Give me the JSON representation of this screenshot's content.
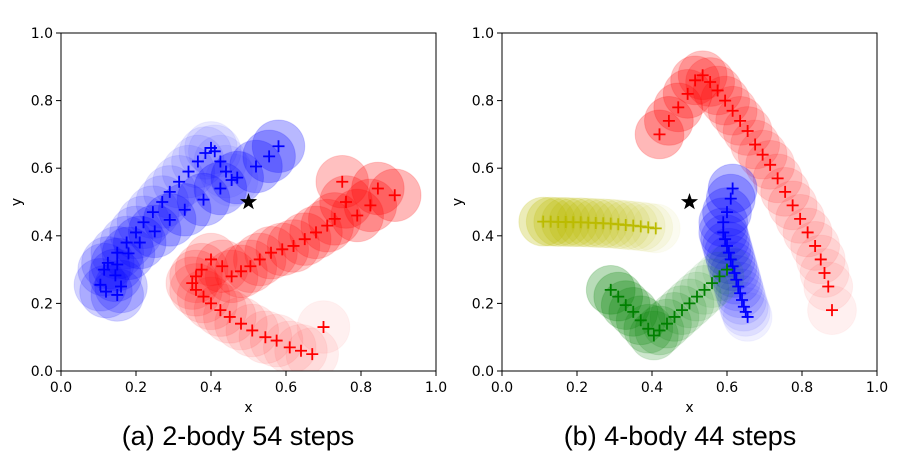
{
  "chart_data": [
    {
      "type": "scatter",
      "caption": "(a) 2-body 54 steps",
      "xlabel": "x",
      "ylabel": "y",
      "xlim": [
        0.0,
        1.0
      ],
      "ylim": [
        0.0,
        1.0
      ],
      "xticks": [
        "0.0",
        "0.2",
        "0.4",
        "0.6",
        "0.8",
        "1.0"
      ],
      "yticks": [
        "0.0",
        "0.2",
        "0.4",
        "0.6",
        "0.8",
        "1.0"
      ],
      "grid": false,
      "target": {
        "x": 0.5,
        "y": 0.5,
        "marker": "star"
      },
      "series": [
        {
          "color": "#0000ff",
          "x": [
            0.58,
            0.555,
            0.52,
            0.47,
            0.425,
            0.38,
            0.33,
            0.29,
            0.25,
            0.21,
            0.18,
            0.15,
            0.145,
            0.16,
            0.15,
            0.12,
            0.105,
            0.115,
            0.125,
            0.15,
            0.175,
            0.2,
            0.22,
            0.245,
            0.27,
            0.29,
            0.315,
            0.34,
            0.365,
            0.385,
            0.4,
            0.41,
            0.425,
            0.44,
            0.455
          ],
          "y": [
            0.665,
            0.635,
            0.605,
            0.572,
            0.54,
            0.507,
            0.477,
            0.447,
            0.413,
            0.38,
            0.348,
            0.315,
            0.283,
            0.25,
            0.225,
            0.235,
            0.255,
            0.3,
            0.32,
            0.35,
            0.38,
            0.41,
            0.44,
            0.47,
            0.5,
            0.53,
            0.56,
            0.59,
            0.62,
            0.645,
            0.66,
            0.65,
            0.62,
            0.59,
            0.565
          ],
          "marker_size": 0.14
        },
        {
          "color": "#ff0000",
          "x": [
            0.89,
            0.845,
            0.825,
            0.79,
            0.76,
            0.75,
            0.73,
            0.71,
            0.68,
            0.65,
            0.62,
            0.59,
            0.56,
            0.53,
            0.505,
            0.48,
            0.455,
            0.43,
            0.4,
            0.375,
            0.36,
            0.35,
            0.36,
            0.38,
            0.4,
            0.425,
            0.45,
            0.48,
            0.51,
            0.545,
            0.575,
            0.61,
            0.64,
            0.67,
            0.7
          ],
          "y": [
            0.52,
            0.54,
            0.49,
            0.46,
            0.5,
            0.56,
            0.45,
            0.43,
            0.41,
            0.39,
            0.37,
            0.36,
            0.35,
            0.33,
            0.31,
            0.295,
            0.28,
            0.31,
            0.33,
            0.3,
            0.28,
            0.26,
            0.24,
            0.22,
            0.2,
            0.18,
            0.16,
            0.14,
            0.12,
            0.1,
            0.09,
            0.07,
            0.06,
            0.05,
            0.13
          ],
          "marker_size": 0.14
        }
      ]
    },
    {
      "type": "scatter",
      "caption": "(b) 4-body 44 steps",
      "xlabel": "x",
      "ylabel": "y",
      "xlim": [
        0.0,
        1.0
      ],
      "ylim": [
        0.0,
        1.0
      ],
      "xticks": [
        "0.0",
        "0.2",
        "0.4",
        "0.6",
        "0.8",
        "1.0"
      ],
      "yticks": [
        "0.0",
        "0.2",
        "0.4",
        "0.6",
        "0.8",
        "1.0"
      ],
      "grid": false,
      "target": {
        "x": 0.5,
        "y": 0.5,
        "marker": "star"
      },
      "series": [
        {
          "color": "#ff0000",
          "x": [
            0.42,
            0.445,
            0.47,
            0.495,
            0.515,
            0.535,
            0.555,
            0.575,
            0.595,
            0.615,
            0.635,
            0.655,
            0.675,
            0.695,
            0.715,
            0.735,
            0.755,
            0.775,
            0.795,
            0.815,
            0.835,
            0.85,
            0.86,
            0.87,
            0.88
          ],
          "y": [
            0.7,
            0.74,
            0.78,
            0.82,
            0.86,
            0.875,
            0.855,
            0.83,
            0.8,
            0.77,
            0.74,
            0.71,
            0.67,
            0.64,
            0.61,
            0.57,
            0.53,
            0.49,
            0.45,
            0.41,
            0.37,
            0.33,
            0.29,
            0.25,
            0.18
          ],
          "marker_size": 0.13
        },
        {
          "color": "#bbbb00",
          "x": [
            0.11,
            0.13,
            0.15,
            0.17,
            0.19,
            0.21,
            0.23,
            0.25,
            0.27,
            0.29,
            0.31,
            0.33,
            0.35,
            0.37,
            0.39,
            0.41
          ],
          "y": [
            0.442,
            0.442,
            0.441,
            0.441,
            0.44,
            0.44,
            0.439,
            0.438,
            0.437,
            0.436,
            0.434,
            0.432,
            0.43,
            0.428,
            0.425,
            0.422
          ],
          "marker_size": 0.13
        },
        {
          "color": "#0000ff",
          "x": [
            0.615,
            0.61,
            0.6,
            0.59,
            0.59,
            0.595,
            0.6,
            0.605,
            0.61,
            0.615,
            0.62,
            0.625,
            0.63,
            0.635,
            0.64,
            0.645,
            0.65,
            0.655
          ],
          "y": [
            0.54,
            0.51,
            0.47,
            0.44,
            0.41,
            0.39,
            0.37,
            0.35,
            0.33,
            0.31,
            0.29,
            0.27,
            0.25,
            0.23,
            0.21,
            0.19,
            0.175,
            0.16
          ],
          "marker_size": 0.13
        },
        {
          "color": "#008000",
          "x": [
            0.29,
            0.31,
            0.33,
            0.35,
            0.37,
            0.39,
            0.405,
            0.42,
            0.44,
            0.46,
            0.48,
            0.5,
            0.52,
            0.54,
            0.56,
            0.58,
            0.6
          ],
          "y": [
            0.24,
            0.22,
            0.195,
            0.175,
            0.15,
            0.125,
            0.105,
            0.12,
            0.14,
            0.16,
            0.18,
            0.2,
            0.22,
            0.24,
            0.26,
            0.28,
            0.3
          ],
          "marker_size": 0.13
        }
      ]
    }
  ]
}
